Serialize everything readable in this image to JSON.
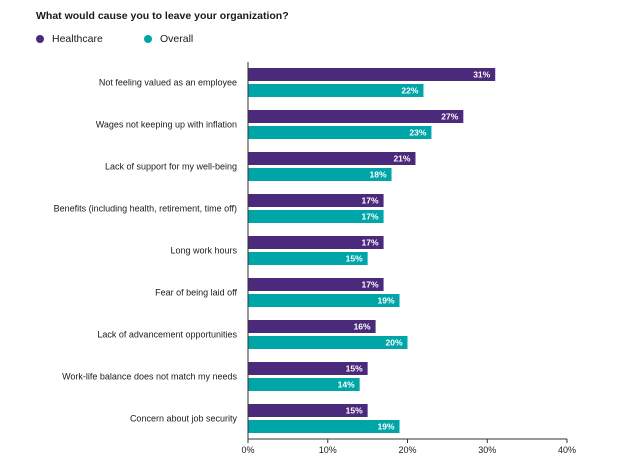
{
  "chart_data": {
    "type": "bar",
    "orientation": "horizontal",
    "title": "What would cause you to leave your organization?",
    "categories": [
      "Not feeling valued as an employee",
      "Wages not keeping up with inflation",
      "Lack of support for my well-being",
      "Benefits (including health, retirement, time off)",
      "Long work hours",
      "Fear of being laid off",
      "Lack of advancement opportunities",
      "Work-life balance does not match my needs",
      "Concern about job security"
    ],
    "series": [
      {
        "name": "Healthcare",
        "color": "#4b2a7b",
        "values": [
          31,
          27,
          21,
          17,
          17,
          17,
          16,
          15,
          15
        ]
      },
      {
        "name": "Overall",
        "color": "#00a5a8",
        "values": [
          22,
          23,
          18,
          17,
          15,
          19,
          20,
          14,
          19
        ]
      }
    ],
    "xlim": [
      0,
      40
    ],
    "xticks": [
      0,
      10,
      20,
      30,
      40
    ],
    "tick_suffix": "%",
    "value_suffix": "%",
    "legend_position": "top-left",
    "grid": false
  }
}
